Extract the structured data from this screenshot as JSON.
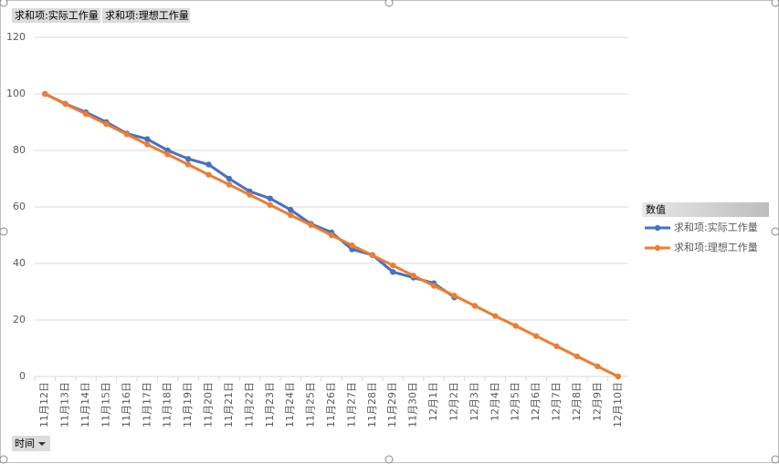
{
  "chart_data": {
    "type": "line",
    "value_field_buttons": [
      "求和项:实际工作量",
      "求和项:理想工作量"
    ],
    "axis_field_button": "时间",
    "legend_title": "数值",
    "categories": [
      "11月12日",
      "11月13日",
      "11月14日",
      "11月15日",
      "11月16日",
      "11月17日",
      "11月18日",
      "11月19日",
      "11月20日",
      "11月21日",
      "11月22日",
      "11月23日",
      "11月24日",
      "11月25日",
      "11月26日",
      "11月27日",
      "11月28日",
      "11月29日",
      "11月30日",
      "12月1日",
      "12月2日",
      "12月3日",
      "12月4日",
      "12月5日",
      "12月6日",
      "12月7日",
      "12月8日",
      "12月9日",
      "12月10日"
    ],
    "series": [
      {
        "name": "求和项:实际工作量",
        "color": "#4472c4",
        "values": [
          100,
          96.5,
          93.5,
          90,
          86,
          84,
          80,
          77,
          75,
          70,
          65.5,
          63,
          59,
          54,
          51,
          45,
          43,
          37,
          35,
          33,
          28,
          null,
          null,
          null,
          null,
          null,
          null,
          null,
          null
        ]
      },
      {
        "name": "求和项:理想工作量",
        "color": "#ed7d31",
        "values": [
          100,
          96.4,
          92.9,
          89.3,
          85.7,
          82.1,
          78.6,
          75,
          71.4,
          67.9,
          64.3,
          60.7,
          57.1,
          53.6,
          50,
          46.4,
          42.9,
          39.3,
          35.7,
          32.1,
          28.6,
          25,
          21.4,
          17.9,
          14.3,
          10.7,
          7.1,
          3.6,
          0
        ]
      }
    ],
    "ylim": [
      0,
      120
    ],
    "yticks": [
      0,
      20,
      40,
      60,
      80,
      100,
      120
    ],
    "grid": true,
    "legend": "right"
  }
}
